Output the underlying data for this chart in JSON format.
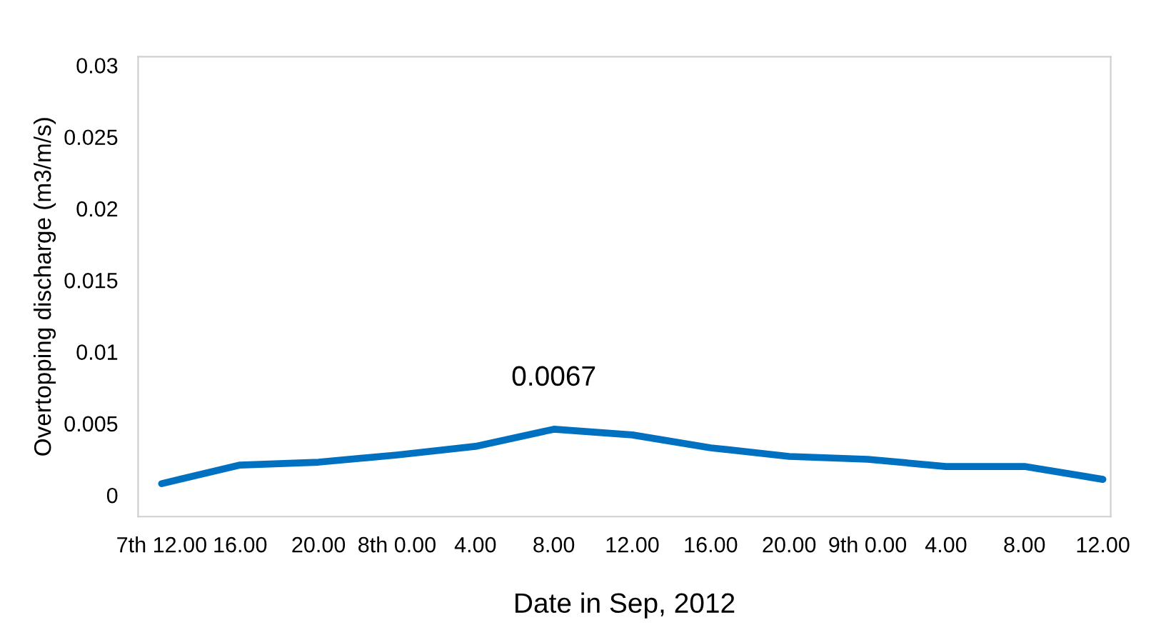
{
  "chart_data": {
    "type": "line",
    "xlabel": "Date in Sep, 2012",
    "ylabel": "Overtopping discharge (m3/m/s)",
    "categories": [
      "7th 12.00",
      "16.00",
      "20.00",
      "8th 0.00",
      "4.00",
      "8.00",
      "12.00",
      "16.00",
      "20.00",
      "9th 0.00",
      "4.00",
      "8.00",
      "12.00"
    ],
    "series": [
      {
        "color": "#0070c0",
        "values": [
          0.0008,
          0.0021,
          0.0023,
          0.0028,
          0.0034,
          0.0046,
          0.0042,
          0.0033,
          0.0027,
          0.0025,
          0.002,
          0.002,
          0.0011
        ]
      }
    ],
    "ylim": [
      -0.0015,
      0.0306
    ],
    "yticks": [
      0,
      0.005,
      0.01,
      0.015,
      0.02,
      0.025,
      0.03
    ],
    "annotations": [
      {
        "text": "0.0067",
        "x": "8.00",
        "y": 0.0046
      }
    ],
    "grid": false,
    "marker": "none",
    "line_style": "solid"
  }
}
